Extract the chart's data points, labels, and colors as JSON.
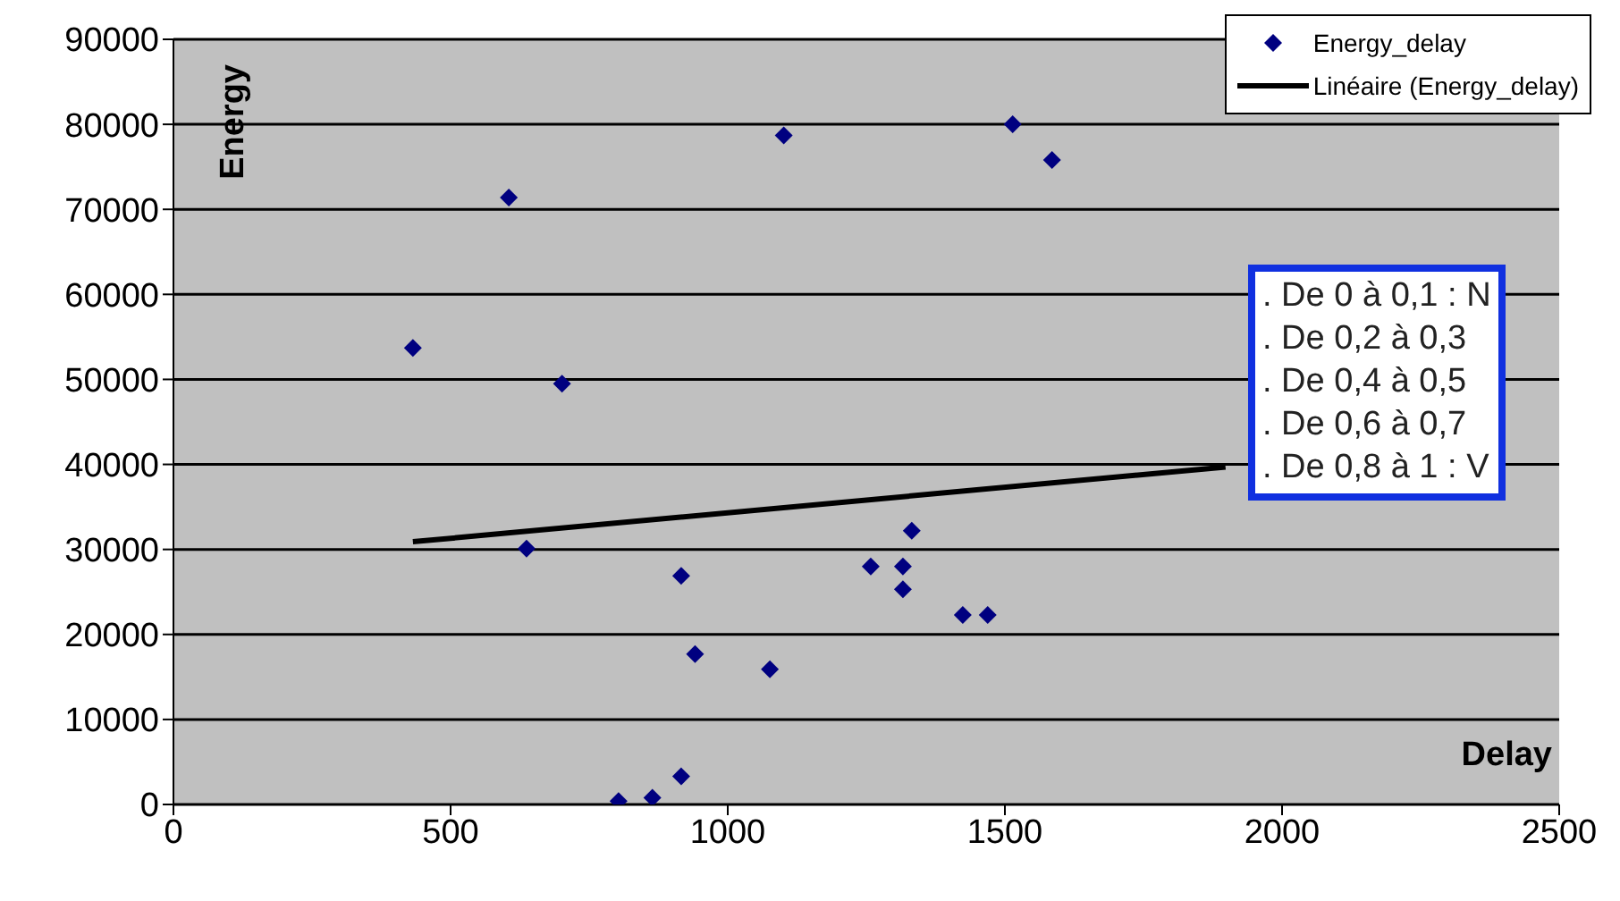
{
  "chart_data": {
    "type": "scatter",
    "xlabel": "Delay",
    "ylabel": "Energy",
    "xlim": [
      0,
      2500
    ],
    "xticks": [
      0,
      500,
      1000,
      1500,
      2000,
      2500
    ],
    "ylim": [
      0,
      90000
    ],
    "yticks": [
      0,
      10000,
      20000,
      30000,
      40000,
      50000,
      60000,
      70000,
      80000,
      90000
    ],
    "grid": "y",
    "legend": "top right",
    "marker": "diamond",
    "series": [
      {
        "name": "Energy_delay",
        "color": "#000080",
        "x": [
          432,
          605,
          701,
          637,
          1101,
          1514,
          1585,
          916,
          941,
          1076,
          803,
          864,
          916,
          1258,
          1316,
          1316,
          1332,
          1424,
          1469
        ],
        "values": [
          53700,
          71400,
          49500,
          30100,
          78700,
          80000,
          75800,
          26900,
          17700,
          15900,
          400,
          800,
          3300,
          28000,
          28000,
          25300,
          32200,
          22300,
          22300
        ]
      },
      {
        "name": "Linéaire (Energy_delay)",
        "type": "line",
        "color": "#000000",
        "marker": "none",
        "line_style": "solid",
        "x": [
          432,
          1898
        ],
        "values": [
          30900,
          39700
        ]
      }
    ],
    "annotations": [
      ". De 0 à 0,1 : N",
      ". De 0,2 à 0,3",
      ". De 0,4 à 0,5",
      ". De 0,6 à 0,7",
      ". De 0,8 à 1 : V"
    ]
  }
}
